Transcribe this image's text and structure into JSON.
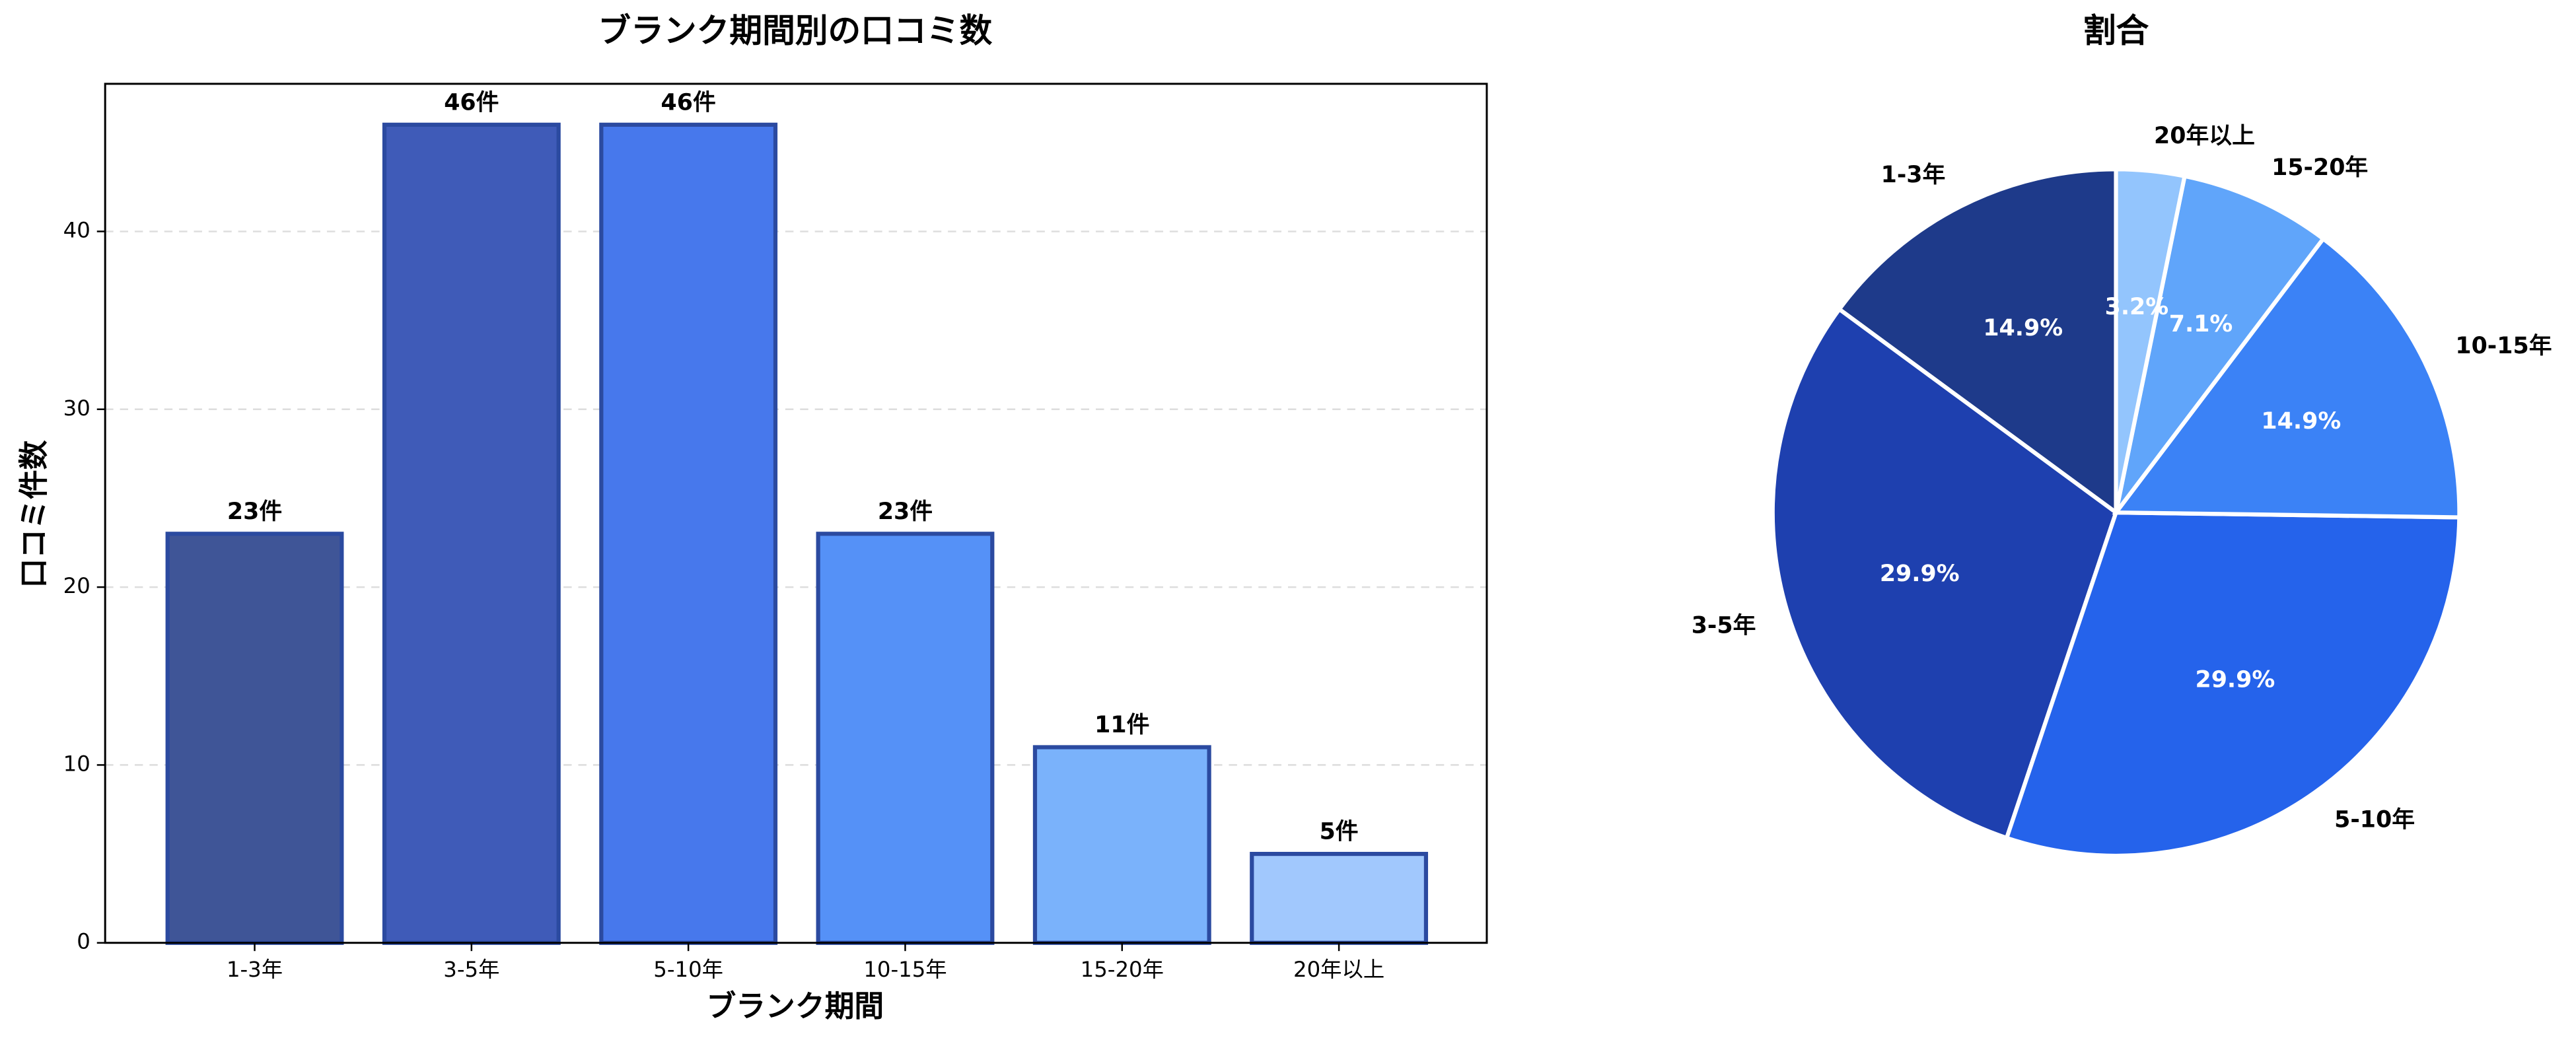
{
  "chart_data": [
    {
      "type": "bar",
      "title": "ブランク期間別の口コミ数",
      "x_label": "ブランク期間",
      "y_label": "口コミ件数",
      "categories": [
        "1-3年",
        "3-5年",
        "5-10年",
        "10-15年",
        "15-20年",
        "20年以上"
      ],
      "values": [
        23,
        46,
        46,
        23,
        11,
        5
      ],
      "value_labels": [
        "23件",
        "46件",
        "46件",
        "23件",
        "11件",
        "5件"
      ],
      "colors": [
        "#3f5597",
        "#3f5bb8",
        "#4778ec",
        "#5591f7",
        "#7ab2fb",
        "#a1c8fd"
      ],
      "edgecolor": "#2b4aa0",
      "ylim": [
        0,
        48.3
      ],
      "yticks": [
        0,
        10,
        20,
        30,
        40
      ],
      "grid": true
    },
    {
      "type": "pie",
      "title": "割合",
      "categories": [
        "1-3年",
        "3-5年",
        "5-10年",
        "10-15年",
        "15-20年",
        "20年以上"
      ],
      "values": [
        14.9,
        29.9,
        29.9,
        14.9,
        7.1,
        3.2
      ],
      "value_labels": [
        "14.9%",
        "29.9%",
        "29.9%",
        "14.9%",
        "7.1%",
        "3.2%"
      ],
      "colors": [
        "#1e3a8a",
        "#1e40af",
        "#2563eb",
        "#3b82f6",
        "#60a5fa",
        "#93c5fd"
      ]
    }
  ]
}
